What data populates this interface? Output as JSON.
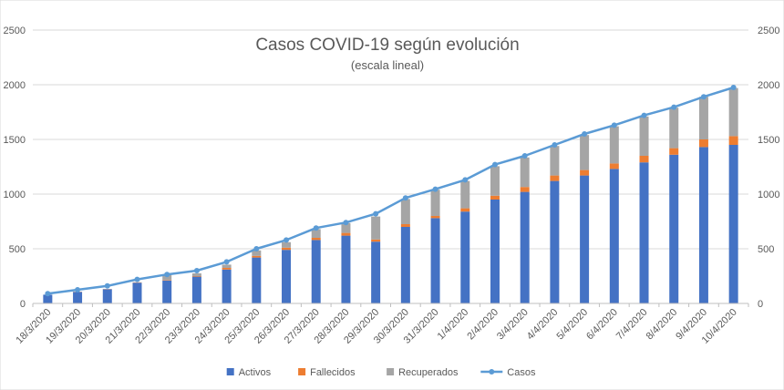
{
  "chart_data": {
    "type": "bar",
    "title": "Casos COVID-19 según evolución",
    "subtitle": "(escala lineal)",
    "categories": [
      "18/3/2020",
      "19/3/2020",
      "20/3/2020",
      "21/3/2020",
      "22/3/2020",
      "23/3/2020",
      "24/3/2020",
      "25/3/2020",
      "26/3/2020",
      "27/3/2020",
      "28/3/2020",
      "29/3/2020",
      "30/3/2020",
      "31/3/2020",
      "1/4/2020",
      "2/4/2020",
      "3/4/2020",
      "4/4/2020",
      "5/4/2020",
      "6/4/2020",
      "7/4/2020",
      "8/4/2020",
      "9/4/2020",
      "10/4/2020"
    ],
    "ylim": [
      0,
      2500
    ],
    "yticks": [
      0,
      500,
      1000,
      1500,
      2000,
      2500
    ],
    "ytick_labels": [
      "0",
      "500",
      "1000",
      "1500",
      "2000",
      "2500"
    ],
    "stacked": true,
    "grid": true,
    "legend_position": "bottom",
    "series": [
      {
        "name": "Activos",
        "type": "bar",
        "color": "#4472C4",
        "values": [
          80,
          105,
          130,
          190,
          210,
          245,
          310,
          420,
          490,
          580,
          620,
          565,
          700,
          780,
          840,
          950,
          1020,
          1120,
          1170,
          1230,
          1290,
          1360,
          1430,
          1450
        ]
      },
      {
        "name": "Fallecidos",
        "type": "bar",
        "color": "#ED7D31",
        "values": [
          0,
          2,
          2,
          3,
          5,
          5,
          15,
          15,
          20,
          20,
          25,
          20,
          25,
          20,
          30,
          35,
          45,
          50,
          50,
          50,
          60,
          60,
          70,
          80
        ]
      },
      {
        "name": "Recuperados",
        "type": "bar",
        "color": "#A5A5A5",
        "values": [
          0,
          0,
          0,
          0,
          45,
          25,
          30,
          50,
          50,
          80,
          90,
          210,
          230,
          240,
          250,
          270,
          270,
          270,
          320,
          340,
          360,
          370,
          390,
          440
        ]
      },
      {
        "name": "Casos",
        "type": "line",
        "color": "#5B9BD5",
        "values": [
          90,
          125,
          160,
          220,
          265,
          300,
          380,
          500,
          580,
          690,
          740,
          820,
          965,
          1045,
          1130,
          1270,
          1350,
          1450,
          1550,
          1630,
          1720,
          1795,
          1890,
          1975
        ]
      }
    ]
  }
}
